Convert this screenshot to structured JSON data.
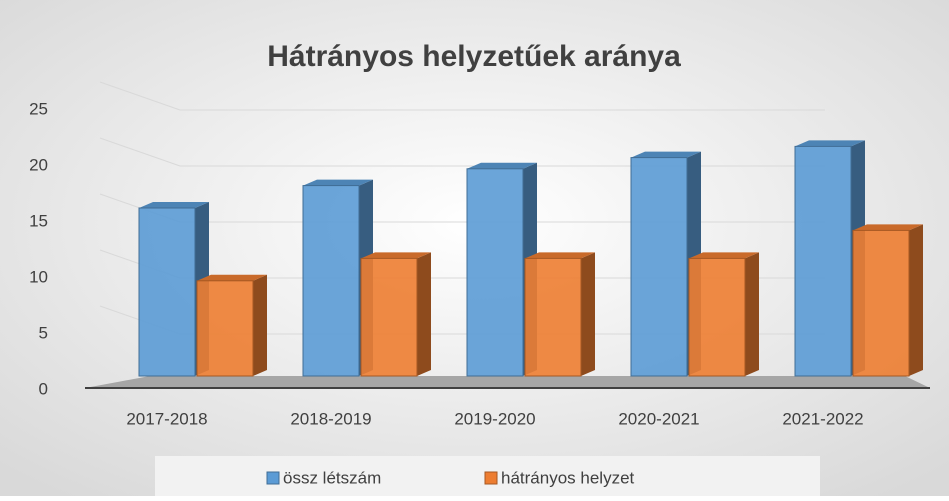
{
  "chart_data": {
    "type": "bar3d",
    "title": "Hátrányos helyzetűek aránya",
    "categories": [
      "2017-2018",
      "2018-2019",
      "2019-2020",
      "2020-2021",
      "2021-2022"
    ],
    "series": [
      {
        "name": "össz létszám",
        "color": "#5b9bd5",
        "values": [
          15,
          17,
          18.5,
          19.5,
          20.5
        ]
      },
      {
        "name": "hátrányos helyzet",
        "color": "#ed7d31",
        "values": [
          8.5,
          10.5,
          10.5,
          10.5,
          13
        ]
      }
    ],
    "ylim": [
      0,
      25
    ],
    "yticks": [
      0,
      5,
      10,
      15,
      20,
      25
    ],
    "grid": true,
    "legend": "bottom"
  }
}
